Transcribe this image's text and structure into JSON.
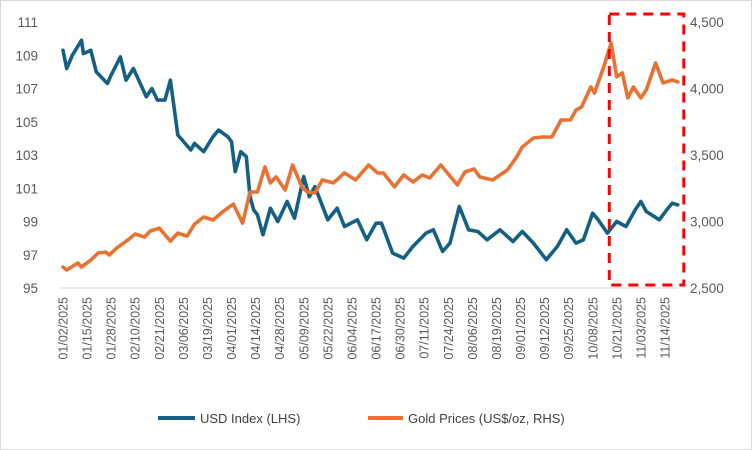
{
  "chart_data": {
    "type": "line",
    "title": "",
    "xlabel": "",
    "ylabel_left": "",
    "ylabel_right": "",
    "grid": false,
    "legend_position": "bottom",
    "x_tick_labels": [
      "01/02/2025",
      "01/15/2025",
      "01/28/2025",
      "02/10/2025",
      "02/21/2025",
      "03/06/2025",
      "03/19/2025",
      "04/01/2025",
      "04/14/2025",
      "04/28/2025",
      "05/09/2025",
      "05/22/2025",
      "06/04/2025",
      "06/17/2025",
      "06/30/2025",
      "07/11/2025",
      "07/24/2025",
      "08/06/2025",
      "08/19/2025",
      "09/01/2025",
      "09/12/2025",
      "09/25/2025",
      "10/08/2025",
      "10/21/2025",
      "11/03/2025",
      "11/14/2025"
    ],
    "y_left": {
      "min": 95,
      "max": 111,
      "ticks": [
        "95",
        "97",
        "99",
        "101",
        "103",
        "105",
        "107",
        "109",
        "111"
      ]
    },
    "y_right": {
      "min": 2500,
      "max": 4500,
      "ticks": [
        "2,500",
        "3,000",
        "3,500",
        "4,000",
        "4,500"
      ]
    },
    "highlight": {
      "x_range": [
        "10/24/2025",
        "11/30/2025"
      ],
      "color": "#FF0000",
      "style": "dashed"
    },
    "series": [
      {
        "name": "USD Index (LHS)",
        "axis": "left",
        "color": "#156082",
        "points": [
          [
            "01/02/2025",
            109.3
          ],
          [
            "01/04/2025",
            108.2
          ],
          [
            "01/07/2025",
            109.0
          ],
          [
            "01/12/2025",
            109.9
          ],
          [
            "01/13/2025",
            109.1
          ],
          [
            "01/17/2025",
            109.3
          ],
          [
            "01/20/2025",
            108.0
          ],
          [
            "01/26/2025",
            107.3
          ],
          [
            "01/28/2025",
            107.8
          ],
          [
            "02/02/2025",
            108.9
          ],
          [
            "02/05/2025",
            107.5
          ],
          [
            "02/09/2025",
            108.2
          ],
          [
            "02/16/2025",
            106.5
          ],
          [
            "02/19/2025",
            107.0
          ],
          [
            "02/22/2025",
            106.3
          ],
          [
            "02/26/2025",
            106.3
          ],
          [
            "03/01/2025",
            107.5
          ],
          [
            "03/05/2025",
            104.2
          ],
          [
            "03/12/2025",
            103.3
          ],
          [
            "03/14/2025",
            103.7
          ],
          [
            "03/19/2025",
            103.2
          ],
          [
            "03/24/2025",
            104.1
          ],
          [
            "03/27/2025",
            104.5
          ],
          [
            "04/01/2025",
            104.1
          ],
          [
            "04/03/2025",
            103.8
          ],
          [
            "04/05/2025",
            102.0
          ],
          [
            "04/08/2025",
            103.2
          ],
          [
            "04/11/2025",
            102.9
          ],
          [
            "04/13/2025",
            100.5
          ],
          [
            "04/15/2025",
            99.7
          ],
          [
            "04/17/2025",
            99.4
          ],
          [
            "04/20/2025",
            98.2
          ],
          [
            "04/24/2025",
            99.8
          ],
          [
            "04/28/2025",
            99.0
          ],
          [
            "05/03/2025",
            100.2
          ],
          [
            "05/07/2025",
            99.2
          ],
          [
            "05/12/2025",
            101.7
          ],
          [
            "05/15/2025",
            100.5
          ],
          [
            "05/18/2025",
            101.1
          ],
          [
            "05/25/2025",
            99.1
          ],
          [
            "05/30/2025",
            99.8
          ],
          [
            "06/03/2025",
            98.7
          ],
          [
            "06/10/2025",
            99.1
          ],
          [
            "06/15/2025",
            97.9
          ],
          [
            "06/20/2025",
            98.9
          ],
          [
            "06/23/2025",
            98.9
          ],
          [
            "06/29/2025",
            97.1
          ],
          [
            "07/05/2025",
            96.8
          ],
          [
            "07/10/2025",
            97.5
          ],
          [
            "07/17/2025",
            98.3
          ],
          [
            "07/21/2025",
            98.5
          ],
          [
            "07/26/2025",
            97.2
          ],
          [
            "07/30/2025",
            97.7
          ],
          [
            "08/04/2025",
            99.9
          ],
          [
            "08/09/2025",
            98.5
          ],
          [
            "08/14/2025",
            98.4
          ],
          [
            "08/19/2025",
            97.9
          ],
          [
            "08/26/2025",
            98.5
          ],
          [
            "09/02/2025",
            97.8
          ],
          [
            "09/07/2025",
            98.4
          ],
          [
            "09/13/2025",
            97.7
          ],
          [
            "09/20/2025",
            96.7
          ],
          [
            "09/26/2025",
            97.5
          ],
          [
            "10/01/2025",
            98.5
          ],
          [
            "10/06/2025",
            97.7
          ],
          [
            "10/10/2025",
            97.9
          ],
          [
            "10/15/2025",
            99.5
          ],
          [
            "10/18/2025",
            99.1
          ],
          [
            "10/23/2025",
            98.3
          ],
          [
            "10/28/2025",
            99.0
          ],
          [
            "11/02/2025",
            98.7
          ],
          [
            "11/07/2025",
            99.7
          ],
          [
            "11/10/2025",
            100.2
          ],
          [
            "11/13/2025",
            99.6
          ],
          [
            "11/20/2025",
            99.1
          ],
          [
            "11/24/2025",
            99.7
          ],
          [
            "11/27/2025",
            100.1
          ],
          [
            "11/30/2025",
            100.0
          ]
        ]
      },
      {
        "name": "Gold Prices (US$/oz, RHS)",
        "axis": "right",
        "color": "#E97132",
        "points": [
          [
            "01/02/2025",
            2658
          ],
          [
            "01/04/2025",
            2635
          ],
          [
            "01/10/2025",
            2688
          ],
          [
            "01/12/2025",
            2658
          ],
          [
            "01/17/2025",
            2710
          ],
          [
            "01/21/2025",
            2763
          ],
          [
            "01/25/2025",
            2770
          ],
          [
            "01/27/2025",
            2748
          ],
          [
            "01/31/2025",
            2800
          ],
          [
            "02/06/2025",
            2860
          ],
          [
            "02/10/2025",
            2906
          ],
          [
            "02/15/2025",
            2883
          ],
          [
            "02/18/2025",
            2928
          ],
          [
            "02/23/2025",
            2950
          ],
          [
            "03/01/2025",
            2853
          ],
          [
            "03/05/2025",
            2913
          ],
          [
            "03/10/2025",
            2890
          ],
          [
            "03/14/2025",
            2980
          ],
          [
            "03/19/2025",
            3034
          ],
          [
            "03/24/2025",
            3011
          ],
          [
            "03/29/2025",
            3071
          ],
          [
            "04/04/2025",
            3131
          ],
          [
            "04/09/2025",
            2988
          ],
          [
            "04/13/2025",
            3222
          ],
          [
            "04/17/2025",
            3222
          ],
          [
            "04/21/2025",
            3410
          ],
          [
            "04/24/2025",
            3290
          ],
          [
            "04/27/2025",
            3335
          ],
          [
            "05/02/2025",
            3237
          ],
          [
            "05/06/2025",
            3425
          ],
          [
            "05/11/2025",
            3260
          ],
          [
            "05/14/2025",
            3222
          ],
          [
            "05/18/2025",
            3214
          ],
          [
            "05/22/2025",
            3312
          ],
          [
            "05/28/2025",
            3290
          ],
          [
            "06/03/2025",
            3365
          ],
          [
            "06/09/2025",
            3312
          ],
          [
            "06/16/2025",
            3425
          ],
          [
            "06/21/2025",
            3365
          ],
          [
            "06/24/2025",
            3365
          ],
          [
            "06/30/2025",
            3260
          ],
          [
            "07/05/2025",
            3350
          ],
          [
            "07/10/2025",
            3297
          ],
          [
            "07/15/2025",
            3350
          ],
          [
            "07/19/2025",
            3327
          ],
          [
            "07/25/2025",
            3425
          ],
          [
            "08/03/2025",
            3275
          ],
          [
            "08/07/2025",
            3372
          ],
          [
            "08/12/2025",
            3395
          ],
          [
            "08/15/2025",
            3335
          ],
          [
            "08/22/2025",
            3312
          ],
          [
            "08/30/2025",
            3387
          ],
          [
            "09/04/2025",
            3485
          ],
          [
            "09/07/2025",
            3560
          ],
          [
            "09/13/2025",
            3628
          ],
          [
            "09/18/2025",
            3635
          ],
          [
            "09/23/2025",
            3635
          ],
          [
            "09/28/2025",
            3763
          ],
          [
            "10/03/2025",
            3763
          ],
          [
            "10/06/2025",
            3838
          ],
          [
            "10/09/2025",
            3860
          ],
          [
            "10/14/2025",
            4011
          ],
          [
            "10/16/2025",
            3966
          ],
          [
            "10/21/2025",
            4162
          ],
          [
            "10/25/2025",
            4342
          ],
          [
            "10/28/2025",
            4087
          ],
          [
            "10/31/2025",
            4117
          ],
          [
            "11/03/2025",
            3929
          ],
          [
            "11/06/2025",
            4011
          ],
          [
            "11/10/2025",
            3929
          ],
          [
            "11/13/2025",
            3989
          ],
          [
            "11/18/2025",
            4192
          ],
          [
            "11/22/2025",
            4042
          ],
          [
            "11/27/2025",
            4064
          ],
          [
            "11/30/2025",
            4049
          ]
        ]
      }
    ]
  }
}
